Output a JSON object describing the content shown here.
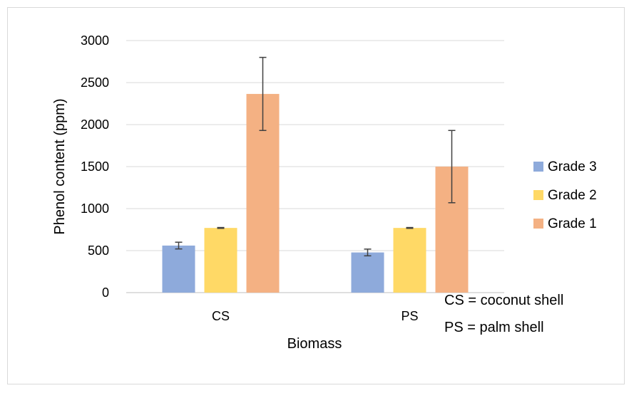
{
  "chart_data": {
    "type": "bar",
    "title": "",
    "xlabel": "Biomass",
    "ylabel": "Phenol content (ppm)",
    "categories": [
      "CS",
      "PS"
    ],
    "ylim": [
      0,
      3000
    ],
    "yticks": [
      0,
      500,
      1000,
      1500,
      2000,
      2500,
      3000
    ],
    "grid": "horizontal",
    "legend_position": "right",
    "series": [
      {
        "name": "Grade 3",
        "color": "#8eaadb",
        "values": [
          560,
          478
        ],
        "error": [
          40,
          40
        ]
      },
      {
        "name": "Grade 2",
        "color": "#ffd966",
        "values": [
          770,
          770
        ],
        "error": [
          5,
          5
        ]
      },
      {
        "name": "Grade 1",
        "color": "#f4b183",
        "values": [
          2365,
          1500
        ],
        "error": [
          435,
          430
        ]
      }
    ],
    "annotations": [
      "CS = coconut shell",
      "PS = palm shell"
    ]
  }
}
